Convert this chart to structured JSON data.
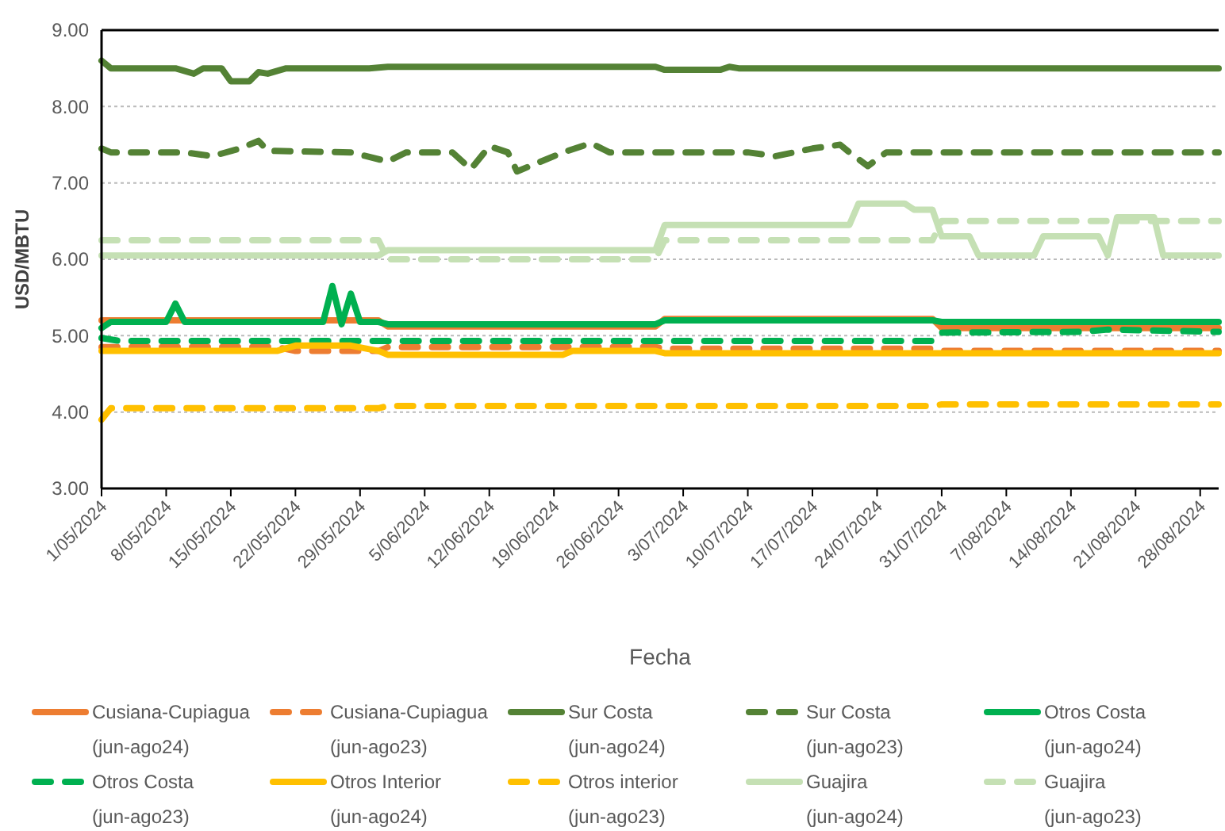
{
  "chart_data": {
    "type": "line",
    "xlabel": "Fecha",
    "ylabel": "USD/MBTU",
    "xlim": [
      "2024-05-01",
      "2024-08-30"
    ],
    "xticks": [
      {
        "value": "2024-05-01",
        "label": "1/05/2024"
      },
      {
        "value": "2024-05-08",
        "label": "8/05/2024"
      },
      {
        "value": "2024-05-15",
        "label": "15/05/2024"
      },
      {
        "value": "2024-05-22",
        "label": "22/05/2024"
      },
      {
        "value": "2024-05-29",
        "label": "29/05/2024"
      },
      {
        "value": "2024-06-05",
        "label": "5/06/2024"
      },
      {
        "value": "2024-06-12",
        "label": "12/06/2024"
      },
      {
        "value": "2024-06-19",
        "label": "19/06/2024"
      },
      {
        "value": "2024-06-26",
        "label": "26/06/2024"
      },
      {
        "value": "2024-07-03",
        "label": "3/07/2024"
      },
      {
        "value": "2024-07-10",
        "label": "10/07/2024"
      },
      {
        "value": "2024-07-17",
        "label": "17/07/2024"
      },
      {
        "value": "2024-07-24",
        "label": "24/07/2024"
      },
      {
        "value": "2024-07-31",
        "label": "31/07/2024"
      },
      {
        "value": "2024-08-07",
        "label": "7/08/2024"
      },
      {
        "value": "2024-08-14",
        "label": "14/08/2024"
      },
      {
        "value": "2024-08-21",
        "label": "21/08/2024"
      },
      {
        "value": "2024-08-28",
        "label": "28/08/2024"
      }
    ],
    "ylim": [
      3,
      9
    ],
    "yticks": [
      {
        "value": 3,
        "label": "3.00"
      },
      {
        "value": 4,
        "label": "4.00"
      },
      {
        "value": 5,
        "label": "5.00"
      },
      {
        "value": 6,
        "label": "6.00"
      },
      {
        "value": 7,
        "label": "7.00"
      },
      {
        "value": 8,
        "label": "8.00"
      },
      {
        "value": 9,
        "label": "9.00"
      }
    ],
    "grid": "y",
    "legend": "bottom",
    "marker": "none",
    "series": [
      {
        "name": "Cusiana-Cupiagua (jun-ago24)",
        "color": "#ed7d31",
        "line_style": "solid",
        "x": [
          "2024-05-01",
          "2024-05-31",
          "2024-06-01",
          "2024-06-30",
          "2024-07-01",
          "2024-07-30",
          "2024-07-31",
          "2024-08-30"
        ],
        "values": [
          5.2,
          5.2,
          5.12,
          5.12,
          5.22,
          5.22,
          5.1,
          5.1
        ]
      },
      {
        "name": "Cusiana-Cupiagua (jun-ago23)",
        "color": "#ed7d31",
        "line_style": "dashed",
        "x": [
          "2024-05-01",
          "2024-05-20",
          "2024-05-22",
          "2024-05-31",
          "2024-06-01",
          "2024-06-30",
          "2024-07-01",
          "2024-07-30",
          "2024-07-31",
          "2024-08-30"
        ],
        "values": [
          4.85,
          4.85,
          4.8,
          4.8,
          4.85,
          4.85,
          4.83,
          4.83,
          4.8,
          4.8
        ]
      },
      {
        "name": "Sur Costa (jun-ago24)",
        "color": "#548235",
        "line_style": "solid",
        "x": [
          "2024-05-01",
          "2024-05-02",
          "2024-05-09",
          "2024-05-11",
          "2024-05-12",
          "2024-05-14",
          "2024-05-15",
          "2024-05-17",
          "2024-05-18",
          "2024-05-19",
          "2024-05-21",
          "2024-05-30",
          "2024-06-01",
          "2024-06-30",
          "2024-07-01",
          "2024-07-07",
          "2024-07-08",
          "2024-07-09",
          "2024-08-30"
        ],
        "values": [
          8.6,
          8.5,
          8.5,
          8.43,
          8.5,
          8.5,
          8.33,
          8.33,
          8.45,
          8.43,
          8.5,
          8.5,
          8.52,
          8.52,
          8.48,
          8.48,
          8.52,
          8.5,
          8.5
        ]
      },
      {
        "name": "Sur Costa (jun-ago23)",
        "color": "#548235",
        "line_style": "dashed",
        "x": [
          "2024-05-01",
          "2024-05-02",
          "2024-05-10",
          "2024-05-13",
          "2024-05-16",
          "2024-05-18",
          "2024-05-19",
          "2024-05-28",
          "2024-06-01",
          "2024-06-03",
          "2024-06-08",
          "2024-06-10",
          "2024-06-12",
          "2024-06-14",
          "2024-06-15",
          "2024-06-20",
          "2024-06-23",
          "2024-06-25",
          "2024-07-10",
          "2024-07-13",
          "2024-07-17",
          "2024-07-20",
          "2024-07-21",
          "2024-07-23",
          "2024-07-25",
          "2024-08-30"
        ],
        "values": [
          7.45,
          7.4,
          7.4,
          7.35,
          7.45,
          7.55,
          7.42,
          7.4,
          7.28,
          7.4,
          7.4,
          7.18,
          7.48,
          7.4,
          7.15,
          7.4,
          7.52,
          7.4,
          7.4,
          7.35,
          7.45,
          7.5,
          7.4,
          7.22,
          7.4,
          7.4
        ]
      },
      {
        "name": "Otros Costa (jun-ago24)",
        "color": "#00b050",
        "line_style": "solid",
        "x": [
          "2024-05-01",
          "2024-05-02",
          "2024-05-08",
          "2024-05-09",
          "2024-05-10",
          "2024-05-25",
          "2024-05-26",
          "2024-05-27",
          "2024-05-28",
          "2024-05-29",
          "2024-05-31",
          "2024-06-01",
          "2024-06-30",
          "2024-07-01",
          "2024-07-30",
          "2024-07-31",
          "2024-08-30"
        ],
        "values": [
          5.1,
          5.18,
          5.18,
          5.42,
          5.18,
          5.18,
          5.65,
          5.15,
          5.55,
          5.18,
          5.18,
          5.15,
          5.15,
          5.2,
          5.2,
          5.18,
          5.18
        ]
      },
      {
        "name": "Otros Costa (jun-ago23)",
        "color": "#00b050",
        "line_style": "dashed",
        "x": [
          "2024-05-01",
          "2024-05-03",
          "2024-07-30",
          "2024-07-31",
          "2024-08-15",
          "2024-08-18",
          "2024-08-30"
        ],
        "values": [
          4.97,
          4.93,
          4.93,
          5.04,
          5.05,
          5.08,
          5.05
        ]
      },
      {
        "name": "Otros Interior (jun-ago24)",
        "color": "#ffc000",
        "line_style": "solid",
        "x": [
          "2024-05-01",
          "2024-05-20",
          "2024-05-22",
          "2024-05-28",
          "2024-05-31",
          "2024-06-01",
          "2024-06-20",
          "2024-06-21",
          "2024-06-30",
          "2024-07-01",
          "2024-08-30"
        ],
        "values": [
          4.8,
          4.8,
          4.87,
          4.87,
          4.8,
          4.75,
          4.75,
          4.8,
          4.8,
          4.77,
          4.77
        ]
      },
      {
        "name": "Otros interior (jun-ago23)",
        "color": "#ffc000",
        "line_style": "dashed",
        "x": [
          "2024-05-01",
          "2024-05-02",
          "2024-05-31",
          "2024-06-01",
          "2024-07-30",
          "2024-07-31",
          "2024-08-30"
        ],
        "values": [
          3.9,
          4.05,
          4.05,
          4.08,
          4.08,
          4.1,
          4.1
        ]
      },
      {
        "name": "Guajira (jun-ago24)",
        "color": "#c5e0b4",
        "line_style": "solid",
        "x": [
          "2024-05-01",
          "2024-05-31",
          "2024-06-01",
          "2024-06-30",
          "2024-07-01",
          "2024-07-21",
          "2024-07-22",
          "2024-07-27",
          "2024-07-28",
          "2024-07-30",
          "2024-07-31",
          "2024-08-03",
          "2024-08-04",
          "2024-08-10",
          "2024-08-11",
          "2024-08-17",
          "2024-08-18",
          "2024-08-19",
          "2024-08-23",
          "2024-08-24",
          "2024-08-30"
        ],
        "values": [
          6.05,
          6.05,
          6.12,
          6.12,
          6.45,
          6.45,
          6.73,
          6.73,
          6.65,
          6.65,
          6.3,
          6.3,
          6.05,
          6.05,
          6.3,
          6.3,
          6.05,
          6.55,
          6.55,
          6.05,
          6.05
        ]
      },
      {
        "name": "Guajira (jun-ago23)",
        "color": "#c5e0b4",
        "line_style": "dashed",
        "x": [
          "2024-05-01",
          "2024-05-31",
          "2024-06-01",
          "2024-06-30",
          "2024-07-01",
          "2024-07-30",
          "2024-07-31",
          "2024-08-30"
        ],
        "values": [
          6.25,
          6.25,
          6.0,
          6.0,
          6.25,
          6.25,
          6.5,
          6.5
        ]
      }
    ]
  }
}
